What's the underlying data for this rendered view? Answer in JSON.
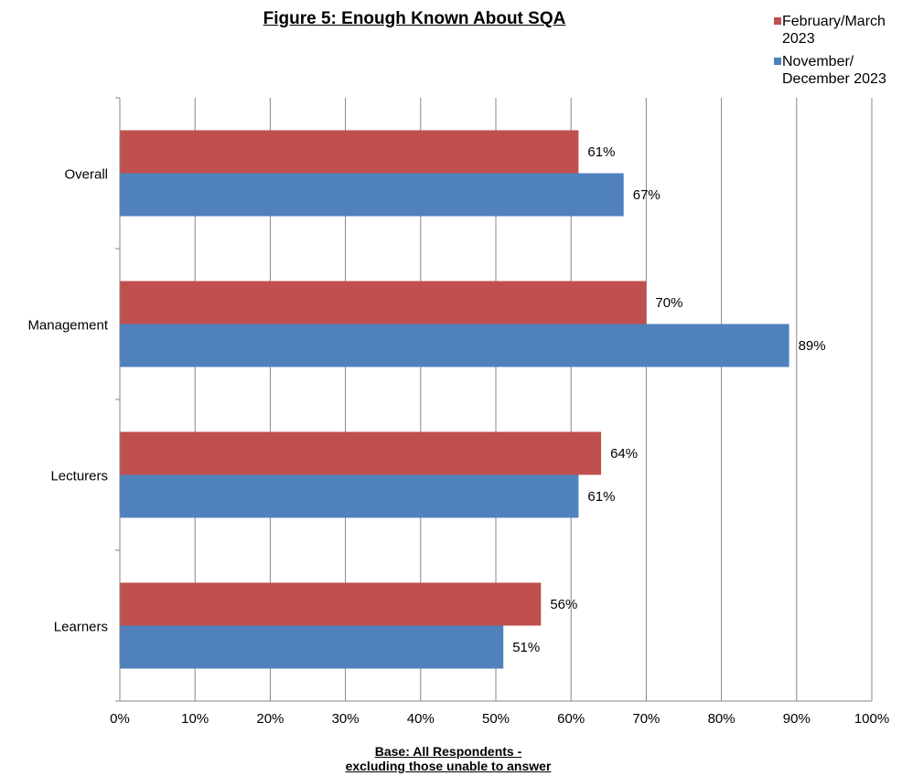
{
  "chart_data": {
    "type": "bar",
    "orientation": "horizontal",
    "title": "Figure 5: Enough Known About SQA",
    "categories": [
      "Overall",
      "Management",
      "Lecturers",
      "Learners"
    ],
    "series": [
      {
        "name": "February/March 2023",
        "name_lines": [
          "February/March",
          "2023"
        ],
        "color": "#C0504D",
        "values": [
          61,
          70,
          64,
          56
        ],
        "labels": [
          "61%",
          "70%",
          "64%",
          "56%"
        ]
      },
      {
        "name": "November/ December 2023",
        "name_lines": [
          "November/",
          "December 2023"
        ],
        "color": "#4F81BD",
        "values": [
          67,
          89,
          61,
          51
        ],
        "labels": [
          "67%",
          "89%",
          "61%",
          "51%"
        ]
      }
    ],
    "xlim": [
      0,
      100
    ],
    "xticks": [
      "0%",
      "10%",
      "20%",
      "30%",
      "40%",
      "50%",
      "60%",
      "70%",
      "80%",
      "90%",
      "100%"
    ],
    "grid": true,
    "legend_position": "top-right"
  },
  "base_note": {
    "line1": "Base:  All Respondents -",
    "line2": "excluding those unable to answer"
  }
}
